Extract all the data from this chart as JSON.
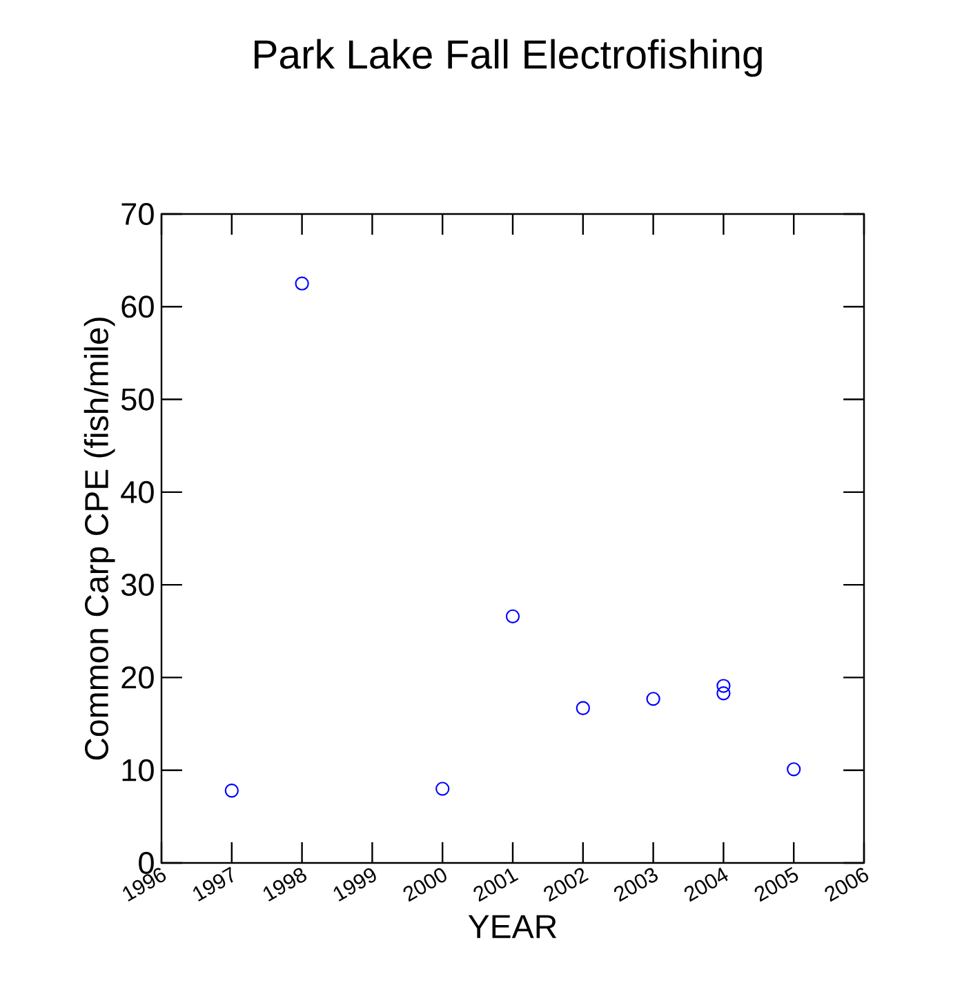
{
  "chart_data": {
    "type": "scatter",
    "title": "Park Lake Fall Electrofishing",
    "xlabel": "YEAR",
    "ylabel": "Common Carp CPE (fish/mile)",
    "x": [
      1997,
      1998,
      2000,
      2001,
      2002,
      2003,
      2004,
      2004,
      2005
    ],
    "values": [
      7.8,
      62.5,
      8.0,
      26.6,
      16.7,
      17.7,
      19.1,
      18.3,
      10.1
    ],
    "color": "#0000ff",
    "marker": "circle",
    "grid": false,
    "xlim": [
      1996,
      2006
    ],
    "xticks": [
      1996,
      1997,
      1998,
      1999,
      2000,
      2001,
      2002,
      2003,
      2004,
      2005,
      2006
    ],
    "ylim": [
      0,
      70
    ],
    "yticks": [
      0,
      10,
      20,
      30,
      40,
      50,
      60,
      70
    ]
  }
}
